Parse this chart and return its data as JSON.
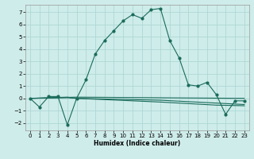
{
  "title": "",
  "xlabel": "Humidex (Indice chaleur)",
  "background_color": "#ceecea",
  "grid_color": "#aed8d4",
  "line_color": "#1a6b5a",
  "xlim": [
    -0.5,
    23.5
  ],
  "ylim": [
    -2.6,
    7.6
  ],
  "yticks": [
    -2,
    -1,
    0,
    1,
    2,
    3,
    4,
    5,
    6,
    7
  ],
  "xticks": [
    0,
    1,
    2,
    3,
    4,
    5,
    6,
    7,
    8,
    9,
    10,
    11,
    12,
    13,
    14,
    15,
    16,
    17,
    18,
    19,
    20,
    21,
    22,
    23
  ],
  "main_series": [
    [
      0,
      0.0
    ],
    [
      1,
      -0.7
    ],
    [
      2,
      0.15
    ],
    [
      3,
      0.15
    ],
    [
      4,
      -2.15
    ],
    [
      5,
      0.0
    ],
    [
      6,
      1.5
    ],
    [
      7,
      3.6
    ],
    [
      8,
      4.7
    ],
    [
      9,
      5.5
    ],
    [
      10,
      6.3
    ],
    [
      11,
      6.8
    ],
    [
      12,
      6.5
    ],
    [
      13,
      7.2
    ],
    [
      14,
      7.3
    ],
    [
      15,
      4.7
    ],
    [
      16,
      3.3
    ],
    [
      17,
      1.1
    ],
    [
      18,
      1.0
    ],
    [
      19,
      1.3
    ],
    [
      20,
      0.3
    ],
    [
      21,
      -1.3
    ],
    [
      22,
      -0.2
    ],
    [
      23,
      -0.2
    ]
  ],
  "flat_line1": [
    [
      0,
      0.0
    ],
    [
      5,
      0.1
    ],
    [
      23,
      0.0
    ]
  ],
  "flat_line2": [
    [
      0,
      0.0
    ],
    [
      4,
      0.1
    ],
    [
      5,
      0.0
    ],
    [
      14,
      -0.15
    ],
    [
      23,
      -0.5
    ]
  ],
  "flat_line3": [
    [
      0,
      0.0
    ],
    [
      4,
      0.05
    ],
    [
      5,
      0.0
    ],
    [
      14,
      -0.3
    ],
    [
      20,
      -0.55
    ],
    [
      23,
      -0.6
    ]
  ]
}
